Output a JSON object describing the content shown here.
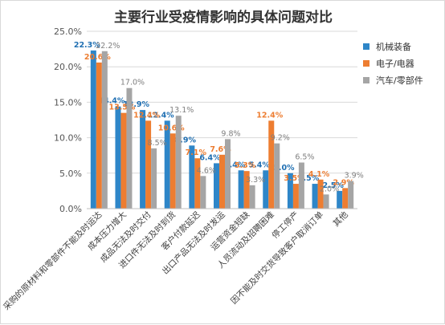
{
  "chart_data": {
    "type": "bar",
    "title": "主要行业受疫情影响的具体问题对比",
    "categories": [
      "采购的原材料和零部件不能及时运达",
      "成本压力增大",
      "成品无法及时交付",
      "进口件无法及时到货",
      "客户付款延迟",
      "出口产品无法及时发运",
      "运营资金短缺",
      "人员流动及招聘困难",
      "停工停产",
      "因不能及时交货导致客户取消订单",
      "其他"
    ],
    "series": [
      {
        "name": "机械装备",
        "color": "#2e86c8",
        "values": [
          22.3,
          14.4,
          13.9,
          12.4,
          8.9,
          6.4,
          5.4,
          5.4,
          5.0,
          3.5,
          2.5
        ],
        "labels": [
          "22.3%",
          "14.4%",
          "13.9%",
          "12.4%",
          "8.9%",
          "6.4%",
          "5.4%",
          "5.4%",
          "5.0%",
          "3.5%",
          "2.5%"
        ]
      },
      {
        "name": "电子/电器",
        "color": "#ed7d31",
        "values": [
          20.6,
          13.5,
          12.4,
          10.6,
          7.1,
          7.6,
          5.3,
          12.4,
          3.5,
          4.1,
          2.9
        ],
        "labels": [
          "20.6%",
          "13.5%",
          "12.4%",
          "10.6%",
          "7.1%",
          "7.6%",
          "5.3%",
          "12.4%",
          "3.5%",
          "4.1%",
          "2.9%"
        ]
      },
      {
        "name": "汽车/零部件",
        "color": "#a5a5a5",
        "values": [
          22.2,
          17.0,
          8.5,
          13.1,
          4.6,
          9.8,
          3.3,
          9.2,
          6.5,
          2.0,
          3.9
        ],
        "labels": [
          "22.2%",
          "17.0%",
          "8.5%",
          "13.1%",
          "4.6%",
          "9.8%",
          "3.3%",
          "9.2%",
          "6.5%",
          "2.0%",
          "3.9%"
        ]
      }
    ],
    "y_ticks": [
      "0.0%",
      "5.0%",
      "10.0%",
      "15.0%",
      "20.0%",
      "25.0%"
    ],
    "ylim": [
      0,
      25
    ],
    "grid": true,
    "legend_position": "right"
  }
}
